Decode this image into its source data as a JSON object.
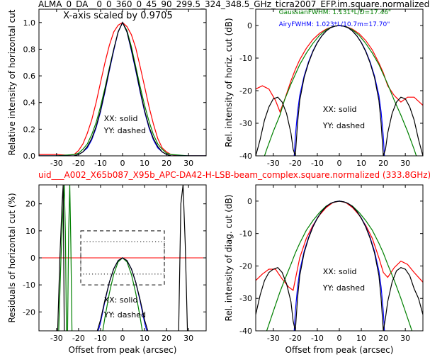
{
  "page": {
    "title_top": "ALMA_0_DA__0_0_360_0_45_90_299.5_324_348.5_GHz_ticra2007_EFP.im.square.normalized",
    "title_bottom": "uid___A002_X65b087_X95b_APC-DA42-H-LSB-beam_complex.square.normalized (333.8GHz)"
  },
  "colors": {
    "black": "#000000",
    "red": "#ff0000",
    "green": "#008000",
    "blue": "#0000ff"
  },
  "chart_data": [
    {
      "id": "tl",
      "type": "line",
      "title": "",
      "annotation": "X-axis scaled by 0.9705",
      "legend_text": [
        "XX: solid",
        "YY: dashed"
      ],
      "xlabel": "",
      "ylabel": "Relative intensity of horizontal cut",
      "xlim": [
        -38,
        38
      ],
      "ylim": [
        0.0,
        1.1
      ],
      "xticks": [
        -30,
        -20,
        -10,
        0,
        10,
        20,
        30
      ],
      "yticks": [
        0.0,
        0.2,
        0.4,
        0.6,
        0.8,
        1.0
      ],
      "ytick_labels": [
        "0.0",
        "0.2",
        "0.4",
        "0.6",
        "0.8",
        "1.0"
      ],
      "series": [
        {
          "color": "red",
          "x": [
            -38,
            -30,
            -25,
            -22,
            -20,
            -18,
            -16,
            -14,
            -12,
            -10,
            -8,
            -6,
            -4,
            -2,
            0,
            2,
            4,
            6,
            8,
            10,
            12,
            14,
            16,
            18,
            20,
            22,
            25,
            30,
            38
          ],
          "y": [
            0.01,
            0.01,
            0.005,
            0.01,
            0.04,
            0.09,
            0.17,
            0.27,
            0.4,
            0.55,
            0.7,
            0.83,
            0.93,
            0.98,
            1.0,
            0.97,
            0.91,
            0.81,
            0.67,
            0.52,
            0.37,
            0.24,
            0.13,
            0.06,
            0.03,
            0.01,
            0.0,
            0.0,
            0.0
          ]
        },
        {
          "color": "green",
          "x": [
            -38,
            -30,
            -22,
            -20,
            -18,
            -16,
            -14,
            -12,
            -10,
            -8,
            -6,
            -4,
            -2,
            0,
            2,
            4,
            6,
            8,
            10,
            12,
            14,
            16,
            18,
            20,
            22,
            30,
            38
          ],
          "y": [
            0.0,
            0.0,
            0.01,
            0.02,
            0.05,
            0.09,
            0.16,
            0.25,
            0.37,
            0.51,
            0.66,
            0.8,
            0.93,
            1.0,
            0.94,
            0.82,
            0.67,
            0.52,
            0.38,
            0.26,
            0.16,
            0.09,
            0.05,
            0.02,
            0.01,
            0.0,
            0.0
          ]
        },
        {
          "color": "blue",
          "x": [
            -38,
            -30,
            -22,
            -20,
            -18,
            -16,
            -14,
            -12,
            -10,
            -8,
            -6,
            -4,
            -2,
            0,
            2,
            4,
            6,
            8,
            10,
            12,
            14,
            16,
            18,
            20,
            22,
            30,
            38
          ],
          "y": [
            0.0,
            0.0,
            0.0,
            0.01,
            0.03,
            0.06,
            0.12,
            0.21,
            0.33,
            0.48,
            0.64,
            0.79,
            0.93,
            1.0,
            0.93,
            0.79,
            0.64,
            0.48,
            0.33,
            0.21,
            0.12,
            0.06,
            0.03,
            0.01,
            0.0,
            0.0,
            0.0
          ]
        },
        {
          "color": "black",
          "x": [
            -38,
            -30,
            -22,
            -20,
            -18,
            -16,
            -14,
            -12,
            -10,
            -8,
            -6,
            -4,
            -2,
            0,
            2,
            4,
            6,
            8,
            10,
            12,
            14,
            16,
            18,
            20,
            22,
            30,
            38
          ],
          "y": [
            0.0,
            0.0,
            0.0,
            0.01,
            0.03,
            0.07,
            0.13,
            0.22,
            0.34,
            0.49,
            0.65,
            0.8,
            0.93,
            1.0,
            0.93,
            0.8,
            0.65,
            0.49,
            0.34,
            0.22,
            0.13,
            0.07,
            0.03,
            0.01,
            0.0,
            0.0,
            0.0
          ]
        }
      ]
    },
    {
      "id": "tr",
      "type": "line",
      "title": "",
      "annotations": [
        "GaussianFWHM: 1.131*L/D=17.46\"",
        "AiryFWHM: 1.023*L/10.7m=17.70\""
      ],
      "annotation_colors": [
        "green",
        "blue"
      ],
      "legend_text": [
        "XX: solid",
        "YY: dashed"
      ],
      "xlabel": "",
      "ylabel": "Rel. intensity of horiz. cut (dB)",
      "xlim": [
        -38,
        38
      ],
      "ylim": [
        -40,
        5
      ],
      "xticks": [
        -30,
        -20,
        -10,
        0,
        10,
        20,
        30
      ],
      "yticks": [
        -40,
        -30,
        -20,
        -10,
        0
      ],
      "series": [
        {
          "color": "red",
          "x": [
            -38,
            -35,
            -32,
            -29,
            -27,
            -25,
            -22,
            -20,
            -18,
            -15,
            -12,
            -9,
            -6,
            -3,
            0,
            3,
            6,
            9,
            12,
            15,
            18,
            20,
            22,
            25,
            28,
            31,
            34,
            38
          ],
          "y": [
            -19.5,
            -18.5,
            -19.5,
            -23,
            -26.5,
            -23,
            -17,
            -13.5,
            -10.5,
            -7,
            -4.3,
            -2.4,
            -1.1,
            -0.3,
            0,
            -0.3,
            -1.1,
            -2.5,
            -4.6,
            -7.5,
            -11.5,
            -14.5,
            -18.5,
            -21.5,
            -23.5,
            -22,
            -22,
            -24.5
          ]
        },
        {
          "color": "green",
          "x": [
            -36,
            -33,
            -30,
            -27,
            -25,
            -22,
            -20,
            -18,
            -15,
            -12,
            -9,
            -6,
            -3,
            0,
            3,
            6,
            9,
            12,
            15,
            18,
            20,
            22,
            25,
            28,
            31,
            34,
            37
          ],
          "y": [
            -44,
            -38,
            -32.5,
            -27.5,
            -23,
            -18,
            -15,
            -12,
            -8.5,
            -5.5,
            -3,
            -1.3,
            -0.3,
            0,
            -0.3,
            -1.3,
            -3,
            -5.5,
            -8.5,
            -12,
            -15,
            -18,
            -23,
            -27.5,
            -32.5,
            -38,
            -44
          ]
        },
        {
          "color": "blue",
          "x": [
            -20.5,
            -20,
            -19,
            -18,
            -16,
            -14,
            -12,
            -10,
            -8,
            -6,
            -4,
            -2,
            0,
            2,
            4,
            6,
            8,
            10,
            12,
            14,
            16,
            18,
            19,
            20,
            20.5
          ],
          "y": [
            -40,
            -34,
            -26.5,
            -21.5,
            -15.5,
            -11.2,
            -7.8,
            -5.2,
            -3.2,
            -1.7,
            -0.7,
            -0.2,
            0,
            -0.2,
            -0.7,
            -1.7,
            -3.2,
            -5.2,
            -7.8,
            -11.2,
            -15.5,
            -21.5,
            -26.5,
            -34,
            -40
          ]
        },
        {
          "color": "black",
          "x": [
            -38,
            -36,
            -34,
            -32,
            -30,
            -28,
            -26,
            -24,
            -22,
            -21,
            -20,
            -19,
            -18,
            -16,
            -14,
            -12,
            -10,
            -8,
            -6,
            -4,
            -2,
            0,
            2,
            4,
            6,
            8,
            10,
            12,
            14,
            16,
            18,
            19,
            20,
            21,
            22,
            24,
            26,
            28,
            30,
            32,
            34,
            36,
            38
          ],
          "y": [
            -40,
            -35,
            -29,
            -25,
            -22.5,
            -22,
            -23.5,
            -27,
            -33,
            -38,
            -40,
            -30,
            -23,
            -16,
            -11.5,
            -8,
            -5.3,
            -3.2,
            -1.7,
            -0.7,
            -0.2,
            0,
            -0.2,
            -0.7,
            -1.7,
            -3.2,
            -5.3,
            -8,
            -11.5,
            -16,
            -23,
            -30,
            -40,
            -38,
            -33,
            -27,
            -23.5,
            -22,
            -22.5,
            -25,
            -29,
            -35,
            -40
          ]
        }
      ]
    },
    {
      "id": "bl",
      "type": "line",
      "title": "",
      "legend_text": [
        "XX: solid",
        "YY: dashed"
      ],
      "xlabel": "Offset from peak (arcsec)",
      "ylabel": "Residuals of horizontal cut (%)",
      "xlim": [
        -38,
        38
      ],
      "ylim": [
        -27,
        27
      ],
      "xticks": [
        -30,
        -20,
        -10,
        0,
        10,
        20,
        30
      ],
      "yticks": [
        -20,
        -10,
        0,
        10,
        20
      ],
      "zero_line_color": "red",
      "boxes": [
        {
          "style": "dashed",
          "x": [
            -19,
            19
          ],
          "y": [
            -10,
            10
          ]
        },
        {
          "style": "dotted",
          "x": [
            -19,
            19
          ],
          "y": [
            -6,
            6
          ]
        }
      ],
      "series": [
        {
          "color": "green",
          "x": [
            -29,
            -28,
            -27,
            -26.5,
            -26,
            -25.5
          ],
          "y": [
            -27,
            0,
            20,
            27,
            10,
            -27
          ]
        },
        {
          "color": "green",
          "x": [
            -25,
            -24.5,
            -24,
            -23.5,
            -23
          ],
          "y": [
            -27,
            10,
            27,
            5,
            -27
          ]
        },
        {
          "color": "black",
          "x": [
            -29.5,
            -28.5,
            -27.5,
            -27,
            -26.5
          ],
          "y": [
            -27,
            0,
            20,
            27,
            -27
          ]
        },
        {
          "color": "black",
          "x": [
            25.5,
            26.5,
            27.5,
            28.5,
            29.5
          ],
          "y": [
            -27,
            20,
            27,
            5,
            -27
          ]
        },
        {
          "color": "green",
          "x": [
            -9,
            -8,
            -6,
            -4,
            -2,
            0,
            2,
            4,
            6,
            8,
            9
          ],
          "y": [
            -27,
            -22,
            -13,
            -6,
            -1.5,
            0,
            -1.5,
            -6,
            -13,
            -22,
            -27
          ]
        },
        {
          "color": "blue",
          "x": [
            -11,
            -10,
            -8,
            -6,
            -4,
            -2,
            0,
            2,
            4,
            6,
            8,
            10,
            11
          ],
          "y": [
            -27,
            -24,
            -16,
            -9,
            -4,
            -1,
            0,
            -1,
            -4,
            -9,
            -16,
            -24,
            -27
          ]
        },
        {
          "color": "black",
          "x": [
            -11.5,
            -10,
            -8,
            -6,
            -4,
            -2,
            0,
            2,
            4,
            6,
            8,
            10,
            11.5
          ],
          "y": [
            -27,
            -23,
            -15.5,
            -9,
            -4,
            -1,
            0,
            -1,
            -4,
            -9,
            -15.5,
            -23,
            -27
          ]
        }
      ]
    },
    {
      "id": "br",
      "type": "line",
      "title": "",
      "legend_text": [
        "XX: solid",
        "YY: dashed"
      ],
      "xlabel": "Offset from peak (arcsec)",
      "ylabel": "Rel. intensity of diag. cut (dB)",
      "xlim": [
        -38,
        38
      ],
      "ylim": [
        -40,
        5
      ],
      "xticks": [
        -30,
        -20,
        -10,
        0,
        10,
        20,
        30
      ],
      "yticks": [
        -40,
        -30,
        -20,
        -10,
        0
      ],
      "series": [
        {
          "color": "red",
          "x": [
            -38,
            -35,
            -32,
            -29,
            -26,
            -23,
            -21,
            -18,
            -15,
            -12,
            -9,
            -6,
            -3,
            0,
            3,
            6,
            9,
            12,
            15,
            18,
            20,
            22,
            25,
            28,
            31,
            34,
            38
          ],
          "y": [
            -24.5,
            -22.5,
            -21,
            -21,
            -24,
            -26.5,
            -27.5,
            -17.5,
            -11.5,
            -7.5,
            -4.3,
            -2,
            -0.5,
            0,
            -0.5,
            -2,
            -4.3,
            -7.5,
            -11.5,
            -17.5,
            -22,
            -23.5,
            -20.5,
            -18.5,
            -19.5,
            -22,
            -25
          ]
        },
        {
          "color": "green",
          "x": [
            -33,
            -30,
            -27,
            -25,
            -22,
            -20,
            -18,
            -15,
            -12,
            -9,
            -6,
            -3,
            0,
            3,
            6,
            9,
            12,
            15,
            18,
            20,
            22,
            25,
            28,
            31,
            33
          ],
          "y": [
            -40,
            -34,
            -28,
            -24.5,
            -19.5,
            -16,
            -13,
            -9,
            -6,
            -3.5,
            -1.5,
            -0.4,
            0,
            -0.4,
            -1.5,
            -3.5,
            -6,
            -9,
            -13,
            -16,
            -19.5,
            -24.5,
            -30,
            -36,
            -40
          ]
        },
        {
          "color": "blue",
          "x": [
            -20.5,
            -20,
            -19,
            -18,
            -16,
            -14,
            -12,
            -10,
            -8,
            -6,
            -4,
            -2,
            0,
            2,
            4,
            6,
            8,
            10,
            12,
            14,
            16,
            18,
            19,
            20,
            20.5
          ],
          "y": [
            -40,
            -34,
            -26.5,
            -21.5,
            -15.5,
            -11.2,
            -7.8,
            -5.2,
            -3.2,
            -1.7,
            -0.7,
            -0.2,
            0,
            -0.2,
            -0.7,
            -1.7,
            -3.2,
            -5.2,
            -7.8,
            -11.2,
            -15.5,
            -21.5,
            -26.5,
            -34,
            -40
          ]
        },
        {
          "color": "black",
          "x": [
            -38,
            -36,
            -34,
            -32,
            -30,
            -28,
            -26,
            -24,
            -22,
            -21,
            -20,
            -19,
            -18,
            -16,
            -14,
            -12,
            -10,
            -8,
            -6,
            -4,
            -2,
            0,
            2,
            4,
            6,
            8,
            10,
            12,
            14,
            16,
            18,
            19,
            20,
            21,
            22,
            24,
            26,
            28,
            30,
            32,
            34,
            36,
            38
          ],
          "y": [
            -35,
            -29,
            -24.5,
            -22,
            -21,
            -20.5,
            -22,
            -25.5,
            -31,
            -37,
            -40,
            -30,
            -23,
            -16,
            -11.5,
            -8,
            -5.3,
            -3.2,
            -1.7,
            -0.7,
            -0.2,
            0,
            -0.2,
            -0.7,
            -1.7,
            -3.2,
            -5.3,
            -8,
            -11.5,
            -16,
            -23,
            -30,
            -40,
            -36,
            -31,
            -25,
            -21.5,
            -20.5,
            -21,
            -23,
            -27,
            -30,
            -35
          ]
        }
      ]
    }
  ]
}
